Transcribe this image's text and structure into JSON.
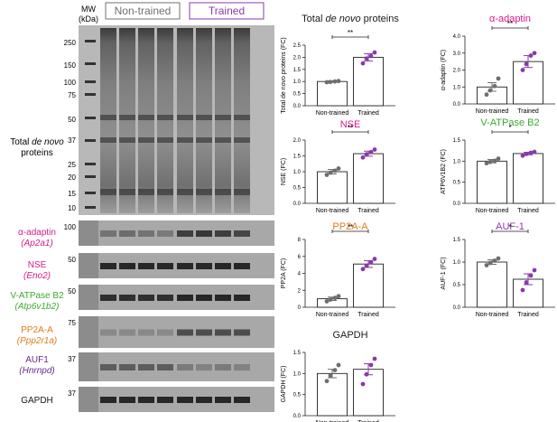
{
  "figure": {
    "mw_header": [
      "MW",
      "(kDa)"
    ],
    "groups": [
      {
        "label": "Non-trained",
        "color": "#707070"
      },
      {
        "label": "Trained",
        "color": "#8a3aa8"
      }
    ],
    "main_blot": {
      "label_line1_pre": "Total ",
      "label_line1_italic": "de novo",
      "label_line2": "proteins",
      "mw_ticks": [
        "250",
        "150",
        "100",
        "75",
        "50",
        "37",
        "25",
        "20",
        "15",
        "10"
      ]
    },
    "small_blots": [
      {
        "name": "α-adaptin",
        "gene": "(Ap2a1)",
        "color": "#d81b8a",
        "mw": "100"
      },
      {
        "name": "NSE",
        "gene": "(Eno2)",
        "color": "#d81b8a",
        "mw": "50"
      },
      {
        "name": "V-ATPase B2",
        "gene": "(Atp6v1b2)",
        "color": "#3caa32",
        "mw": "50"
      },
      {
        "name": "PP2A-A",
        "gene": "(Ppp2r1a)",
        "color": "#e07b1a",
        "mw": "75"
      },
      {
        "name": "AUF1",
        "gene": "(Hnrnpd)",
        "color": "#6a2a8a",
        "mw": "37"
      },
      {
        "name": "GAPDH",
        "gene": "",
        "color": "#1a1a1a",
        "mw": "37"
      }
    ]
  },
  "chart_data": [
    {
      "type": "bar",
      "title_pre": "Total ",
      "title_italic": "de novo",
      "title_post": " proteins",
      "title_color": "#1a1a1a",
      "ylabel": "Total de novo proteins (FC)",
      "ylim": [
        0,
        2.5
      ],
      "ytick_labels": [
        "0.0",
        "0.5",
        "1.0",
        "1.5",
        "2.0",
        "2.5"
      ],
      "categories": [
        "Non-trained",
        "Trained"
      ],
      "values": [
        1.0,
        2.0
      ],
      "errors": [
        0.03,
        0.15
      ],
      "points": [
        [
          0.97,
          0.98,
          1.0,
          1.02
        ],
        [
          1.75,
          1.95,
          2.05,
          2.2
        ]
      ],
      "significance": "**"
    },
    {
      "type": "bar",
      "title": "α-adaptin",
      "title_color": "#d81b8a",
      "ylabel": "α-adaptin (FC)",
      "ylim": [
        0,
        4.0
      ],
      "ytick_labels": [
        "0.0",
        "1.0",
        "2.0",
        "3.0",
        "4.0"
      ],
      "categories": [
        "Non-trained",
        "Trained"
      ],
      "values": [
        1.0,
        2.5
      ],
      "errors": [
        0.25,
        0.35
      ],
      "points": [
        [
          0.55,
          0.8,
          1.05,
          1.5
        ],
        [
          2.0,
          2.35,
          2.85,
          3.0
        ]
      ],
      "significance": "**"
    },
    {
      "type": "bar",
      "title": "NSE",
      "title_color": "#d81b8a",
      "ylabel": "NSE (FC)",
      "ylim": [
        0,
        2.0
      ],
      "ytick_labels": [
        "0.0",
        "0.5",
        "1.0",
        "1.5",
        "2.0"
      ],
      "categories": [
        "Non-trained",
        "Trained"
      ],
      "values": [
        1.0,
        1.57
      ],
      "errors": [
        0.07,
        0.08
      ],
      "points": [
        [
          0.9,
          0.97,
          1.03,
          1.1
        ],
        [
          1.45,
          1.55,
          1.62,
          1.7
        ]
      ],
      "significance": "**"
    },
    {
      "type": "bar",
      "title": "V-ATPase B2",
      "title_color": "#3caa32",
      "ylabel": "ATP6V1B2 (FC)",
      "ylim": [
        0,
        1.5
      ],
      "ytick_labels": [
        "0.0",
        "0.5",
        "1.0",
        "1.5"
      ],
      "categories": [
        "Non-trained",
        "Trained"
      ],
      "values": [
        1.0,
        1.18
      ],
      "errors": [
        0.04,
        0.03
      ],
      "points": [
        [
          0.95,
          0.98,
          1.01,
          1.06
        ],
        [
          1.13,
          1.17,
          1.2,
          1.22
        ]
      ],
      "significance": "*"
    },
    {
      "type": "bar",
      "title": "PP2A-A",
      "title_color": "#e07b1a",
      "ylabel": "PP2A (FC)",
      "ylim": [
        0,
        8
      ],
      "ytick_labels": [
        "0",
        "2",
        "4",
        "6",
        "8"
      ],
      "categories": [
        "Non-trained",
        "Trained"
      ],
      "values": [
        1.0,
        5.1
      ],
      "errors": [
        0.2,
        0.4
      ],
      "points": [
        [
          0.7,
          0.9,
          1.1,
          1.3
        ],
        [
          4.5,
          4.9,
          5.3,
          5.7
        ]
      ],
      "significance": "**"
    },
    {
      "type": "bar",
      "title": "AUF-1",
      "title_color": "#8a3aa8",
      "ylabel": "AUF-1 (FC)",
      "ylim": [
        0,
        1.5
      ],
      "ytick_labels": [
        "0.0",
        "0.5",
        "1.0",
        "1.5"
      ],
      "categories": [
        "Non-trained",
        "Trained"
      ],
      "values": [
        1.0,
        0.62
      ],
      "errors": [
        0.05,
        0.12
      ],
      "points": [
        [
          0.93,
          0.98,
          1.03,
          1.08
        ],
        [
          0.38,
          0.55,
          0.7,
          0.82
        ]
      ],
      "significance": "*"
    },
    {
      "type": "bar",
      "title": "GAPDH",
      "title_color": "#1a1a1a",
      "ylabel": "GAPDH (FC)",
      "ylim": [
        0,
        1.5
      ],
      "ytick_labels": [
        "0.0",
        "0.5",
        "1.0",
        "1.5"
      ],
      "categories": [
        "Non-trained",
        "Trained"
      ],
      "values": [
        1.0,
        1.1
      ],
      "errors": [
        0.1,
        0.13
      ],
      "points": [
        [
          0.82,
          0.95,
          1.08,
          1.2
        ],
        [
          0.75,
          0.98,
          1.2,
          1.35
        ]
      ],
      "significance": ""
    }
  ]
}
